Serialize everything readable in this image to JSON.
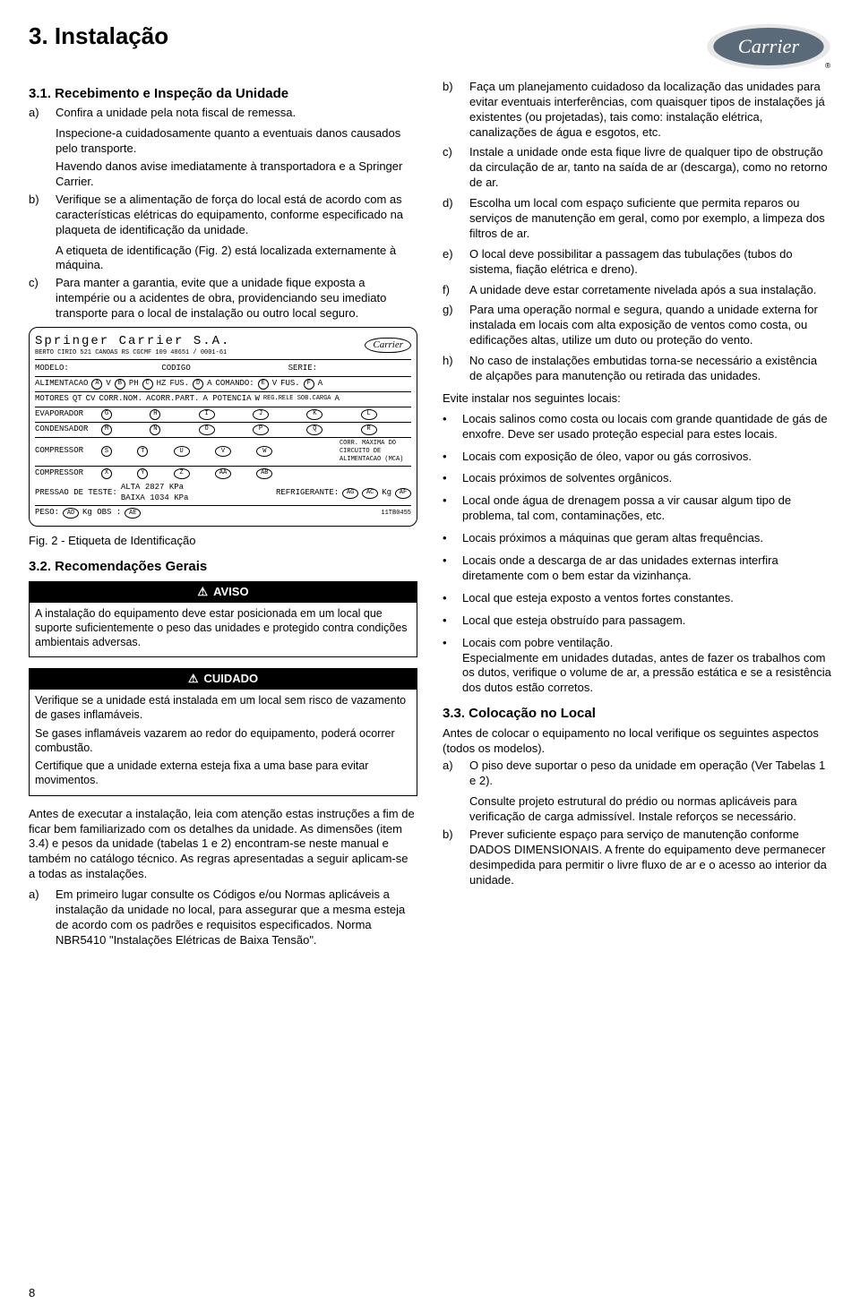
{
  "page_number": "8",
  "logo_text": "Carrier",
  "logo_colors": {
    "bg": "#5a6a78",
    "text": "#ffffff",
    "outer": "#e8e8e8"
  },
  "h1": "3. Instalação",
  "s31": {
    "title": "3.1. Recebimento e Inspeção da Unidade",
    "items": [
      {
        "label": "a)",
        "text": "Confira a unidade pela nota fiscal de remessa.",
        "subs": [
          "Inspecione-a cuidadosamente quanto a eventuais danos causados pelo transporte.",
          "Havendo danos avise imediatamente à transportadora e a Springer Carrier."
        ]
      },
      {
        "label": "b)",
        "text": "Verifique se a alimentação de força do local está de acordo com as características elétricas do equipamento, conforme especificado na plaqueta de identificação da unidade.",
        "subs": [
          "A etiqueta de identificação (Fig. 2) está localizada externamente à máquina."
        ]
      },
      {
        "label": "c)",
        "text": "Para manter a garantia, evite que a unidade fique exposta a intempérie ou a acidentes de obra, providenciando seu imediato transporte para o local de instalação ou outro local seguro.",
        "subs": []
      }
    ]
  },
  "plate": {
    "company": "Springer Carrier S.A.",
    "addr": "BERTO CIRIO 521 CANOAS RS   CGCMF 109 48651 / 0001-61",
    "row1": {
      "modelo": "MODELO:",
      "codigo": "CODIGO",
      "serie": "SERIE:"
    },
    "row2": {
      "alim": "ALIMENTACAO",
      "v": "V",
      "ph": "PH",
      "hz": "HZ",
      "fus": "FUS.",
      "a": "A",
      "cmd": "COMANDO:",
      "v2": "V",
      "fus2": "FUS.",
      "a2": "A"
    },
    "row3": {
      "mot": "MOTORES",
      "qt": "QT",
      "cv": "CV",
      "corr": "CORR.NOM.",
      "acorr": "ACORR.PART.",
      "apot": "A POTENCIA",
      "w": "W",
      "reg": "REG.RELE SOB.CARGA",
      "a": "A"
    },
    "rows_labels": [
      "EVAPORADOR",
      "CONDENSADOR",
      "COMPRESSOR",
      "COMPRESSOR"
    ],
    "rows_letters": [
      [
        "G",
        "H",
        "I",
        "J",
        "K",
        "L"
      ],
      [
        "M",
        "N",
        "O",
        "P",
        "Q",
        "R"
      ],
      [
        "S",
        "T",
        "U",
        "V",
        "W",
        ""
      ],
      [
        "X",
        "Y",
        "Z",
        "AA",
        "AB",
        ""
      ]
    ],
    "mca": "CORR. MAXIMA DO CIRCUITO DE ALIMENTACAO (MCA)",
    "pressao": "PRESSAO DE TESTE:",
    "alta": "ALTA 2827 KPa",
    "baixa": "BAIXA 1034 KPa",
    "refrig": "REFRIGERANTE:",
    "ag": "AG",
    "ac": "AC",
    "kg": "Kg",
    "af": "AF",
    "peso": "PESO:",
    "ad": "AD",
    "kgobs": "Kg OBS :",
    "ae": "AE",
    "code": "11TB0455"
  },
  "fig_caption": "Fig. 2 - Etiqueta de Identificação",
  "s32": {
    "title": "3.2. Recomendações Gerais",
    "aviso": {
      "title": "AVISO",
      "p1": "A instalação do equipamento deve estar posicionada em um local que suporte suficientemente o peso das unidades e protegido contra condições ambientais adversas."
    },
    "cuidado": {
      "title": "CUIDADO",
      "p1": "Verifique se a unidade está instalada em um local sem risco de vazamento de gases inflamáveis.",
      "p2": "Se gases inflamáveis vazarem ao redor do equipamento, poderá ocorrer combustão.",
      "p3": "Certifique que a unidade externa esteja fixa a uma base para evitar movimentos."
    },
    "intro": "Antes de executar a instalação, leia com atenção estas instruções a fim de ficar bem familiarizado com os detalhes da unidade. As dimensões (item 3.4) e pesos da unidade (tabelas 1 e 2) encontram-se neste manual e também no catálogo técnico. As regras apresentadas a seguir aplicam-se a todas as instalações.",
    "items": [
      {
        "label": "a)",
        "text": "Em primeiro lugar consulte os Códigos e/ou Normas aplicáveis a instalação da unidade no local, para assegurar que a mesma esteja de acordo com os padrões e requisitos especificados. Norma NBR5410 \"Instalações Elétricas de Baixa Tensão\"."
      }
    ],
    "items_right": [
      {
        "label": "b)",
        "text": "Faça um planejamento cuidadoso da localização das unidades para evitar eventuais interferências, com quaisquer tipos de instalações já existentes (ou projetadas), tais como: instalação elétrica, canalizações de água e esgotos, etc."
      },
      {
        "label": "c)",
        "text": "Instale a unidade onde esta fique livre de qualquer tipo de obstrução da circulação de ar, tanto na saída de ar (descarga), como no retorno de ar."
      },
      {
        "label": "d)",
        "text": "Escolha um local com espaço suficiente que permita reparos ou serviços de manutenção em geral, como por exemplo, a limpeza dos filtros de ar."
      },
      {
        "label": "e)",
        "text": "O local deve possibilitar a passagem das tubulações (tubos do sistema, fiação elétrica e dreno)."
      },
      {
        "label": "f)",
        "text": "A unidade deve estar corretamente nivelada após a sua instalação."
      },
      {
        "label": "g)",
        "text": "Para uma operação normal e segura, quando a unidade externa for instalada em locais com alta exposição de ventos como costa, ou edificações altas, utilize um duto ou proteção do vento."
      },
      {
        "label": "h)",
        "text": "No caso de instalações embutidas torna-se necessário a existência de alçapões para manutenção ou retirada das unidades."
      }
    ],
    "avoid_intro": "Evite instalar nos seguintes locais:",
    "bullets": [
      "Locais salinos como costa ou locais com grande quantidade de gás de enxofre. Deve ser usado proteção especial para estes locais.",
      "Locais com exposição de óleo, vapor ou gás corrosivos.",
      "Locais próximos de solventes orgânicos.",
      "Local onde água de drenagem possa a vir causar algum tipo de problema, tal com, contaminações, etc.",
      "Locais próximos a máquinas que geram altas frequências.",
      "Locais onde a descarga de ar das unidades externas interfira diretamente com o bem estar da vizinhança.",
      "Local que esteja exposto a ventos fortes constantes.",
      "Local que esteja obstruído para passagem.",
      "Locais com pobre ventilação.\nEspecialmente em unidades dutadas, antes de fazer os trabalhos com os dutos, verifique o volume de ar, a pressão estática e se a resistência dos dutos estão corretos."
    ]
  },
  "s33": {
    "title": "3.3. Colocação no Local",
    "intro": "Antes de colocar o equipamento no local verifique os seguintes aspectos (todos os modelos).",
    "items": [
      {
        "label": "a)",
        "text": "O piso deve suportar o peso da unidade em operação (Ver Tabelas 1 e 2).",
        "subs": [
          "Consulte projeto estrutural do prédio ou normas aplicáveis para verificação de carga admissível. Instale reforços se necessário."
        ]
      },
      {
        "label": "b)",
        "text": "Prever suficiente espaço para serviço de manutenção conforme DADOS DIMENSIONAIS. A frente do equipamento deve permanecer desimpedida para permitir o livre fluxo de ar e o acesso ao interior da unidade.",
        "subs": []
      }
    ]
  }
}
